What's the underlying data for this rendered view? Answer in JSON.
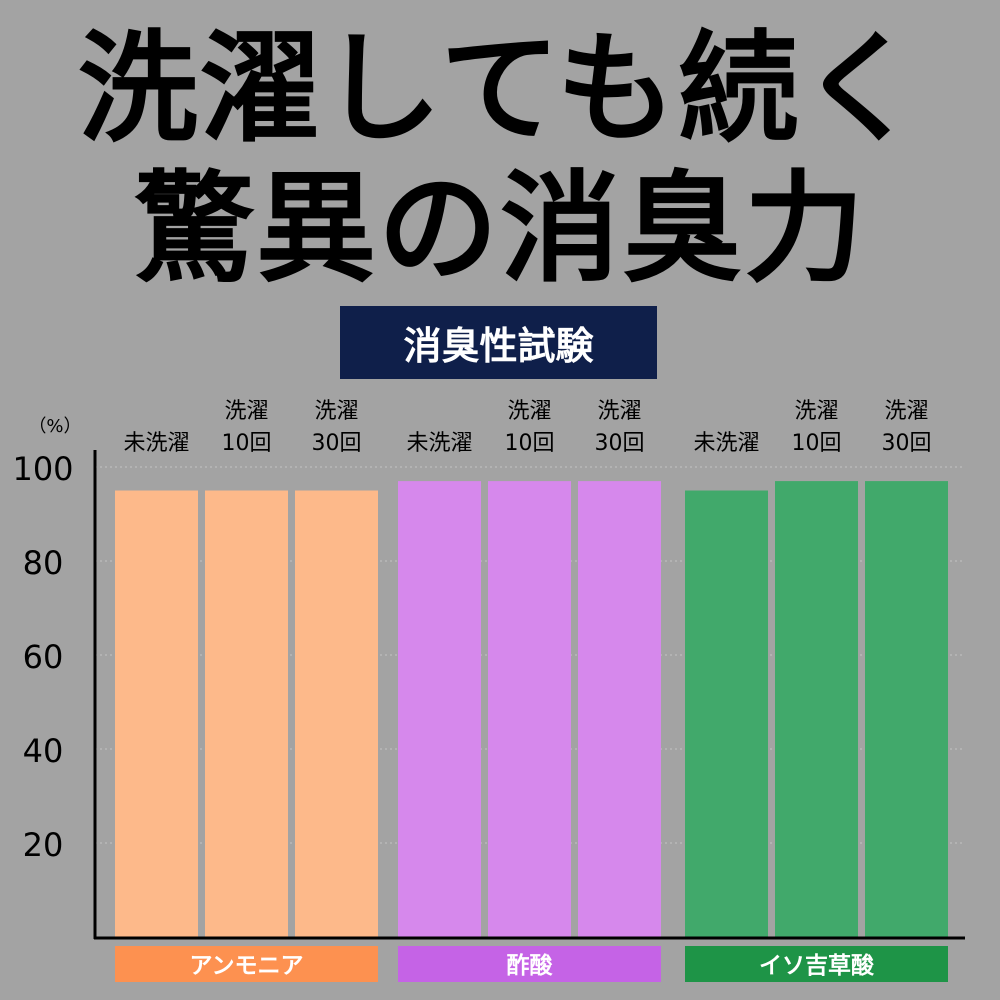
{
  "headline": {
    "line1": "洗濯しても続く",
    "line2": "驚異の消臭力"
  },
  "badge": "消臭性試験",
  "colors": {
    "background": "#a3a3a3",
    "badge": "#0f1f4a",
    "grid": "#bdbdbd",
    "axis": "#000000"
  },
  "chart_data": {
    "type": "bar",
    "ylabel": "（%）",
    "yticks": [
      20,
      40,
      60,
      80,
      100
    ],
    "ylim": [
      0,
      100
    ],
    "grid": true,
    "groups": [
      {
        "name": "アンモニア",
        "bar_color": "#fdb98a",
        "label_color": "#fd9150",
        "bars": [
          {
            "label": [
              "",
              "未洗濯"
            ],
            "value": 95
          },
          {
            "label": [
              "洗濯",
              "10回"
            ],
            "value": 95
          },
          {
            "label": [
              "洗濯",
              "30回"
            ],
            "value": 95
          }
        ]
      },
      {
        "name": "酢酸",
        "bar_color": "#d688ec",
        "label_color": "#c563e6",
        "bars": [
          {
            "label": [
              "",
              "未洗濯"
            ],
            "value": 97
          },
          {
            "label": [
              "洗濯",
              "10回"
            ],
            "value": 97
          },
          {
            "label": [
              "洗濯",
              "30回"
            ],
            "value": 97
          }
        ]
      },
      {
        "name": "イソ吉草酸",
        "bar_color": "#41a96b",
        "label_color": "#1e9447",
        "bars": [
          {
            "label": [
              "",
              "未洗濯"
            ],
            "value": 95
          },
          {
            "label": [
              "洗濯",
              "10回"
            ],
            "value": 97
          },
          {
            "label": [
              "洗濯",
              "30回"
            ],
            "value": 97
          }
        ]
      }
    ]
  }
}
